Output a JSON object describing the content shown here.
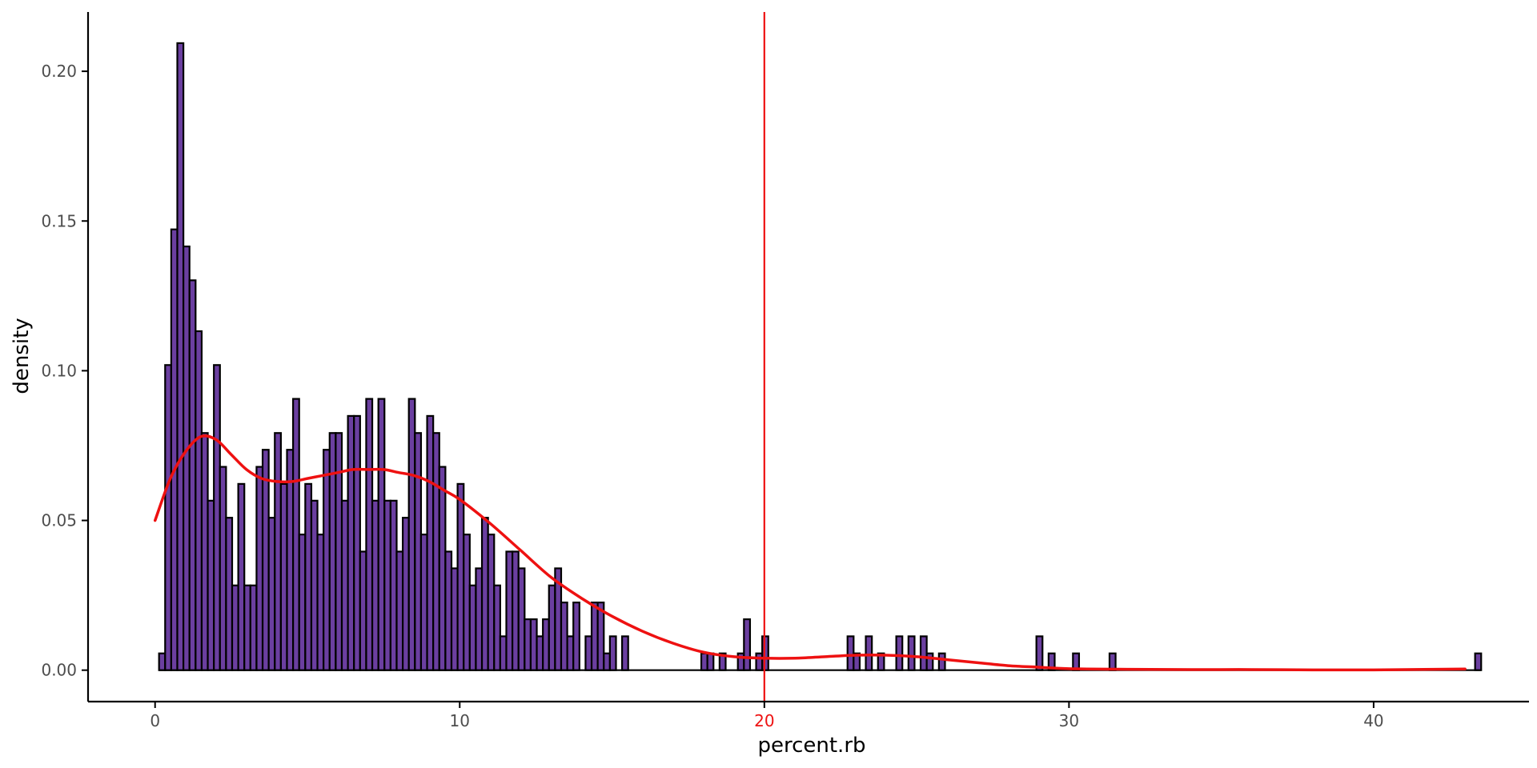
{
  "chart_data": {
    "type": "bar",
    "title": "",
    "xlabel": "percent.rb",
    "ylabel": "density",
    "xlim": [
      -2.2,
      45.1
    ],
    "ylim": [
      -0.0105,
      0.2198
    ],
    "xticks": [
      0,
      10,
      20,
      30,
      40
    ],
    "xtick_labels": [
      "0",
      "10",
      "20",
      "30",
      "40"
    ],
    "highlighted_xtick": "20",
    "yticks": [
      0.0,
      0.05,
      0.1,
      0.15,
      0.2
    ],
    "ytick_labels": [
      "0.00",
      "0.05",
      "0.10",
      "0.15",
      "0.20"
    ],
    "grid": false,
    "legend": "none",
    "bin_start": 0.13,
    "bin_width": 0.2,
    "histogram": {
      "name": "",
      "values": [
        0.0056,
        0.1019,
        0.1472,
        0.2094,
        0.1415,
        0.1302,
        0.1132,
        0.0792,
        0.0566,
        0.1019,
        0.0679,
        0.0509,
        0.0283,
        0.0622,
        0.0283,
        0.0283,
        0.0679,
        0.0736,
        0.0509,
        0.0792,
        0.0622,
        0.0736,
        0.0906,
        0.0453,
        0.0622,
        0.0566,
        0.0453,
        0.0736,
        0.0792,
        0.0792,
        0.0566,
        0.0849,
        0.0849,
        0.0396,
        0.0906,
        0.0566,
        0.0906,
        0.0566,
        0.0566,
        0.0396,
        0.0509,
        0.0906,
        0.0792,
        0.0453,
        0.0849,
        0.0792,
        0.0679,
        0.0396,
        0.034,
        0.0622,
        0.0453,
        0.0283,
        0.034,
        0.0509,
        0.0453,
        0.0283,
        0.0113,
        0.0396,
        0.0396,
        0.034,
        0.017,
        0.017,
        0.0113,
        0.017,
        0.0283,
        0.034,
        0.0226,
        0.0113,
        0.0226,
        0.0,
        0.0113,
        0.0226,
        0.0226,
        0.0056,
        0.0113,
        0.0,
        0.0113,
        0.0,
        0.0,
        0.0,
        0.0,
        0.0,
        0.0,
        0.0,
        0.0,
        0.0,
        0.0,
        0.0,
        0.0,
        0.0056,
        0.0056,
        0.0,
        0.0056,
        0.0,
        0.0,
        0.0056,
        0.017,
        0.0,
        0.0056,
        0.0113,
        0.0,
        0.0,
        0.0,
        0.0,
        0.0,
        0.0,
        0.0,
        0.0,
        0.0,
        0.0,
        0.0,
        0.0,
        0.0,
        0.0113,
        0.0056,
        0.0,
        0.0113,
        0.0,
        0.0056,
        0.0,
        0.0,
        0.0113,
        0.0,
        0.0113,
        0.0,
        0.0113,
        0.0056,
        0.0,
        0.0056,
        0.0,
        0.0,
        0.0,
        0.0,
        0.0,
        0.0,
        0.0,
        0.0,
        0.0,
        0.0,
        0.0,
        0.0,
        0.0,
        0.0,
        0.0,
        0.0113,
        0.0,
        0.0056,
        0.0,
        0.0,
        0.0,
        0.0056,
        0.0,
        0.0,
        0.0,
        0.0,
        0.0,
        0.0056,
        0.0,
        0.0,
        0.0,
        0.0,
        0.0,
        0.0,
        0.0,
        0.0,
        0.0,
        0.0,
        0.0,
        0.0,
        0.0,
        0.0,
        0.0,
        0.0,
        0.0,
        0.0,
        0.0,
        0.0,
        0.0,
        0.0,
        0.0,
        0.0,
        0.0,
        0.0,
        0.0,
        0.0,
        0.0,
        0.0,
        0.0,
        0.0,
        0.0,
        0.0,
        0.0,
        0.0,
        0.0,
        0.0,
        0.0,
        0.0,
        0.0,
        0.0,
        0.0,
        0.0,
        0.0,
        0.0,
        0.0,
        0.0,
        0.0,
        0.0,
        0.0,
        0.0,
        0.0,
        0.0,
        0.0,
        0.0,
        0.0,
        0.0,
        0.0,
        0.0056
      ]
    },
    "density_curve": {
      "name": "",
      "x": [
        0,
        0.5,
        1,
        1.5,
        2,
        2.5,
        3,
        3.5,
        4,
        4.5,
        5,
        5.5,
        6,
        6.5,
        7,
        7.5,
        8,
        8.5,
        9,
        9.5,
        10,
        11,
        12,
        13,
        14,
        15,
        16,
        17,
        18,
        19,
        20,
        21,
        22,
        23,
        24,
        25,
        26,
        27,
        28,
        29,
        30,
        32,
        34,
        36,
        38,
        40,
        42,
        43
      ],
      "y": [
        0.05,
        0.064,
        0.073,
        0.078,
        0.077,
        0.072,
        0.067,
        0.064,
        0.063,
        0.063,
        0.064,
        0.065,
        0.066,
        0.067,
        0.067,
        0.067,
        0.066,
        0.065,
        0.063,
        0.06,
        0.057,
        0.049,
        0.04,
        0.031,
        0.024,
        0.018,
        0.013,
        0.009,
        0.006,
        0.0045,
        0.004,
        0.004,
        0.0045,
        0.005,
        0.005,
        0.0045,
        0.0035,
        0.0025,
        0.0015,
        0.001,
        0.0005,
        0.0003,
        0.0002,
        0.0002,
        0.0001,
        0.0001,
        0.0003,
        0.0004
      ]
    },
    "vline": {
      "x": 20
    },
    "colors": {
      "bar_fill": "#6b3fa0",
      "bar_edge": "#000000",
      "curve": "#ee1111",
      "vline": "#ee1111",
      "highlight_tick": "#ee1111",
      "axis": "#000000",
      "tick_text": "#4d4d4d"
    }
  }
}
